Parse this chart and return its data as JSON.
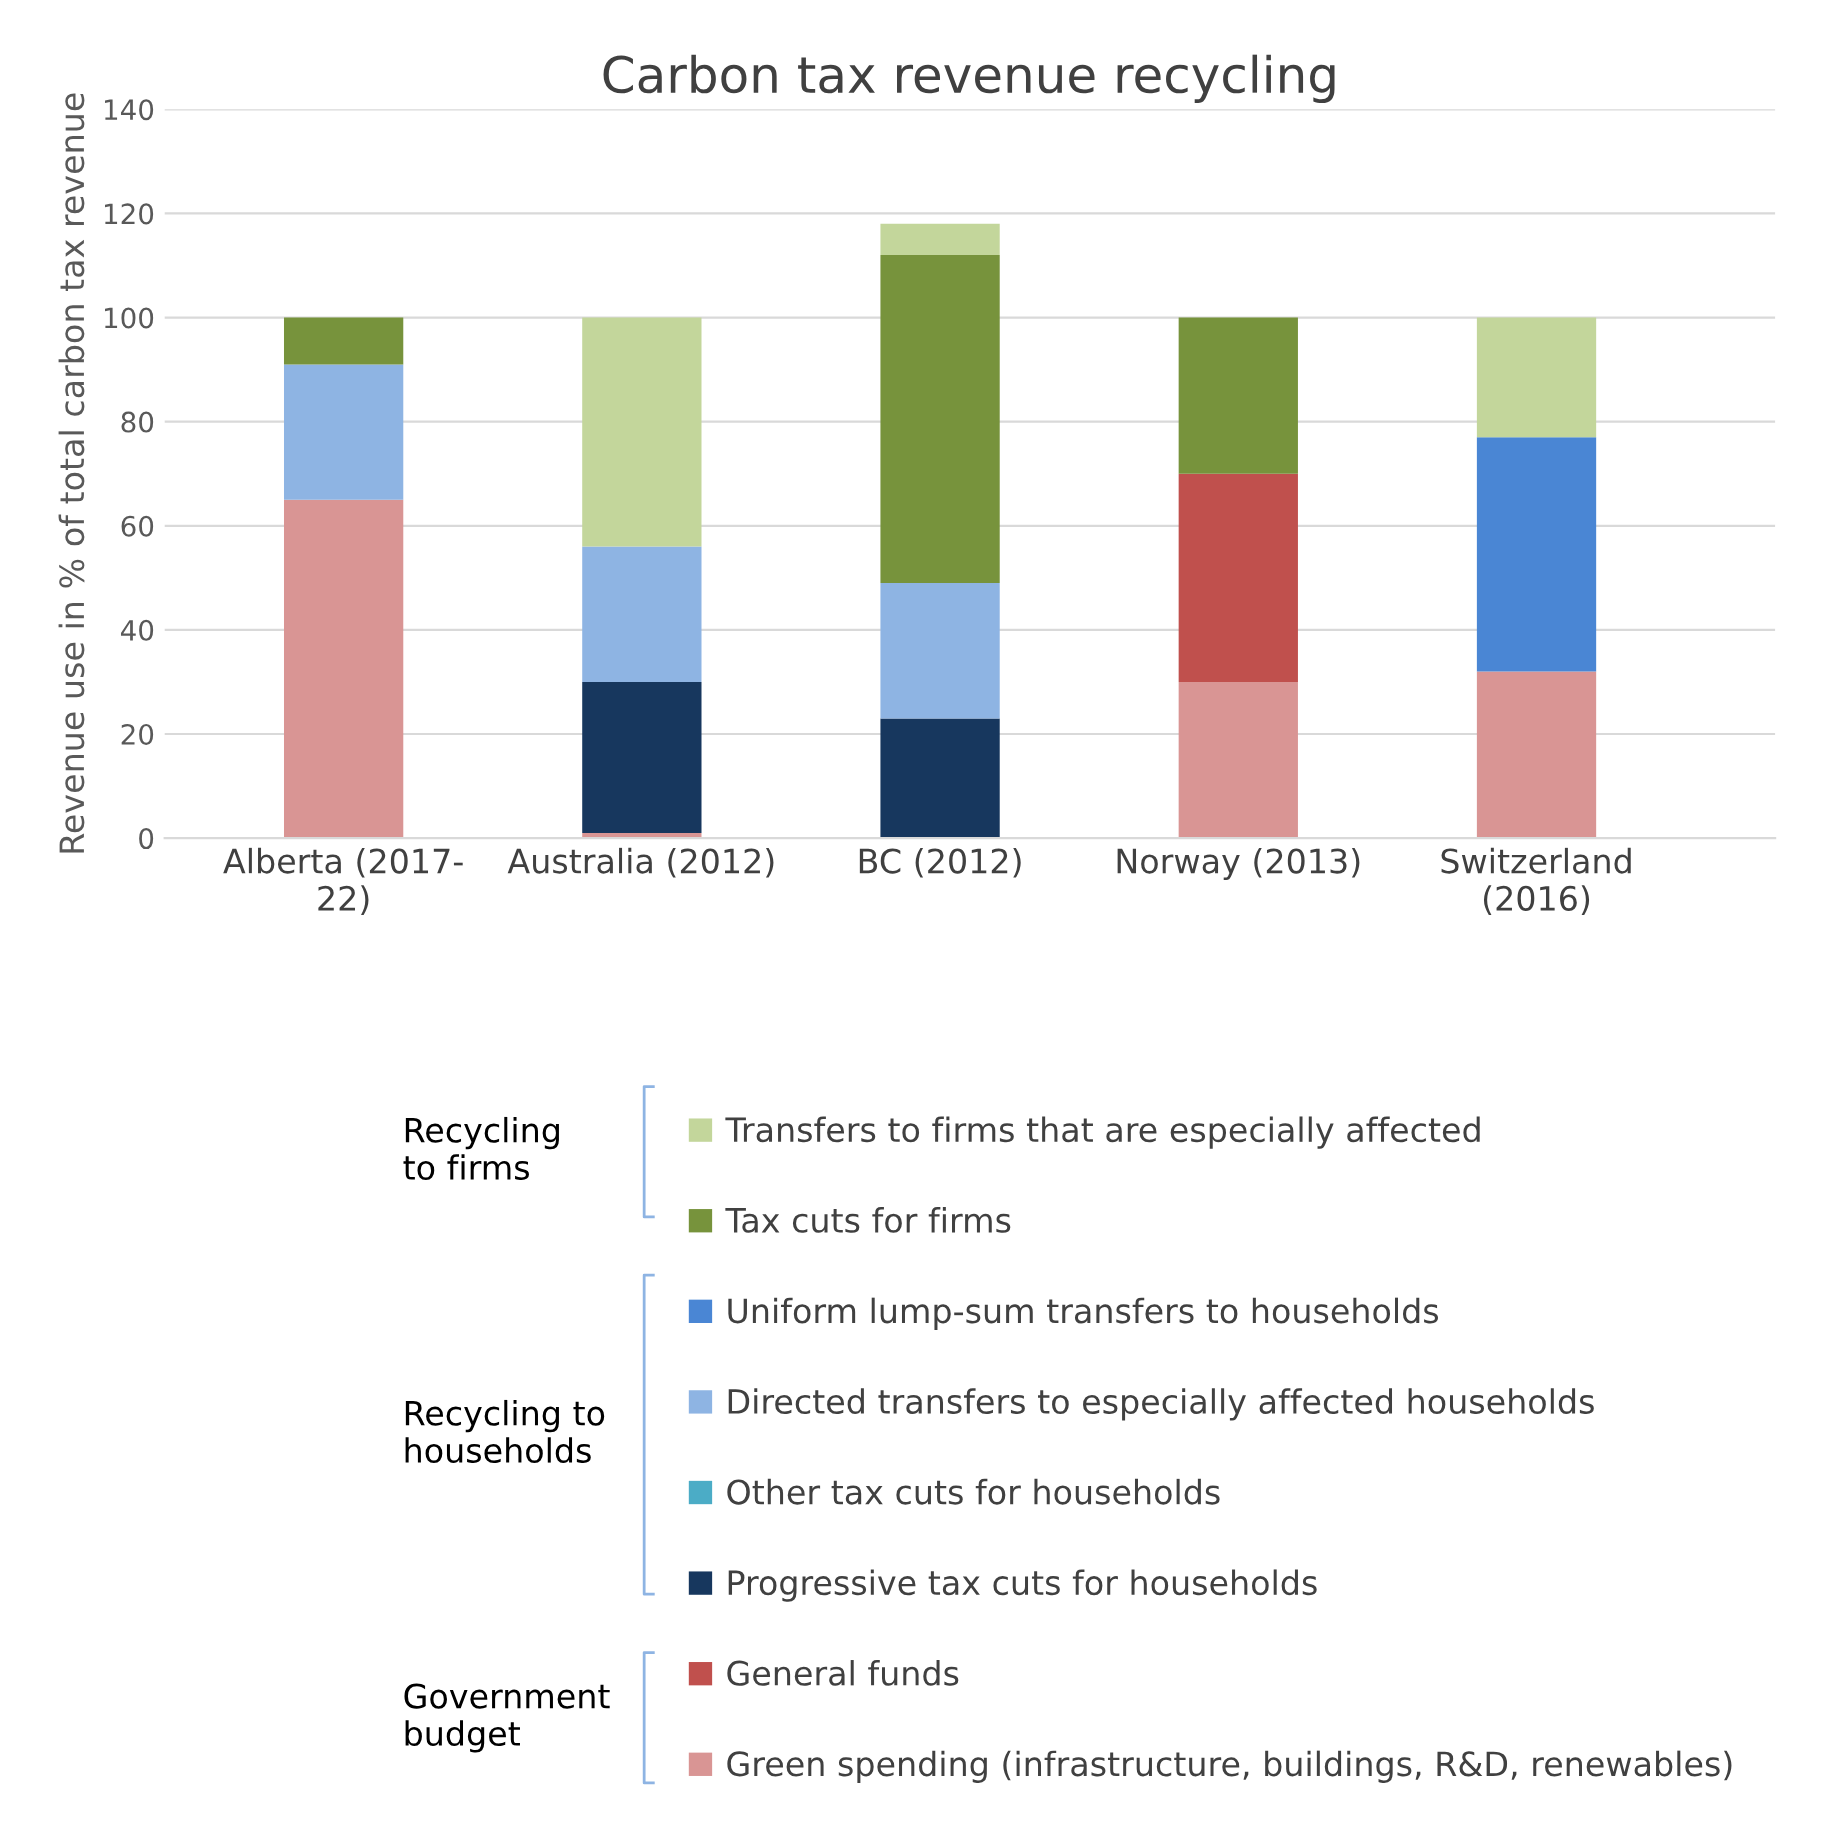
{
  "chart_data": {
    "type": "bar",
    "stacked": true,
    "title": "Carbon tax revenue recycling",
    "ylabel": "Revenue use in % of total carbon tax revenue",
    "categories": [
      "Alberta (2017-\n22)",
      "Australia (2012)",
      "BC (2012)",
      "Norway (2013)",
      "Switzerland\n(2016)"
    ],
    "series": [
      {
        "name": "Green spending (infrastructure, buildings, R&D, renewables)",
        "color": "#d99594",
        "values": [
          65,
          1,
          0,
          30,
          32
        ]
      },
      {
        "name": "General funds",
        "color": "#c0504d",
        "values": [
          0,
          0,
          0,
          40,
          0
        ]
      },
      {
        "name": "Progressive tax cuts for households",
        "color": "#17375e",
        "values": [
          0,
          29,
          23,
          0,
          0
        ]
      },
      {
        "name": "Other tax cuts for households",
        "color": "#4bacc6",
        "values": [
          0,
          0,
          0,
          0,
          0
        ]
      },
      {
        "name": "Directed transfers to especially affected households",
        "color": "#8eb4e3",
        "values": [
          26,
          26,
          26,
          0,
          0
        ]
      },
      {
        "name": "Uniform lump-sum transfers to households",
        "color": "#4a86d4",
        "values": [
          0,
          0,
          0,
          0,
          45
        ]
      },
      {
        "name": "Tax cuts for firms",
        "color": "#77933c",
        "values": [
          9,
          0,
          63,
          30,
          0
        ]
      },
      {
        "name": "Transfers to firms that are especially affected",
        "color": "#c3d69b",
        "values": [
          0,
          44,
          6,
          0,
          23
        ]
      }
    ],
    "ylim": [
      0,
      140
    ],
    "yticks": [
      0,
      20,
      40,
      60,
      80,
      100,
      120,
      140
    ],
    "grid": "y",
    "legend": "bottom",
    "annotations": [
      "Recycling\nto firms",
      "Recycling to\nhouseholds",
      "Government\nbudget"
    ]
  }
}
